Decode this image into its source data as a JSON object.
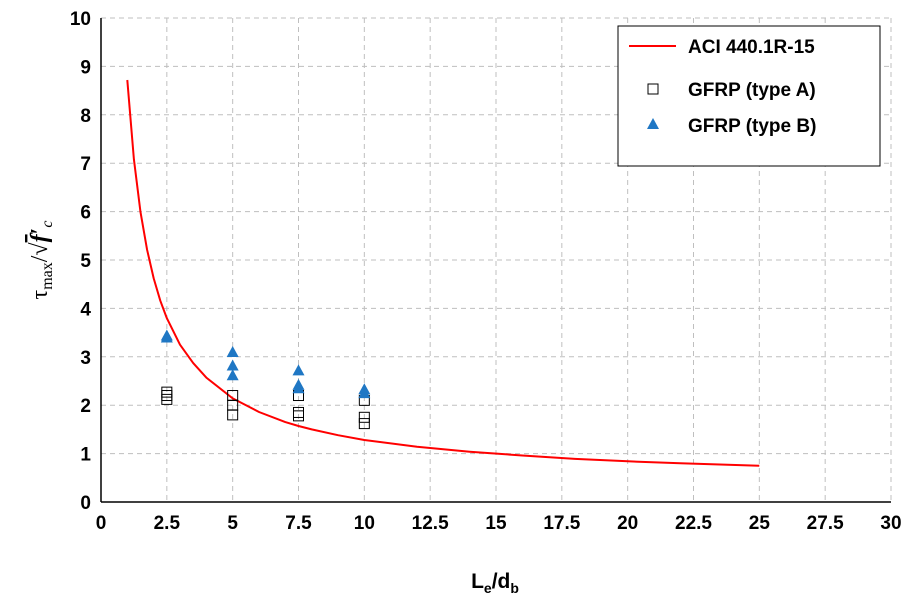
{
  "chart_data": {
    "type": "scatter",
    "xlabel": {
      "main": "L",
      "sub1": "e",
      "mid": "/d",
      "sub2": "b"
    },
    "ylabel": {
      "tau": "τ",
      "sub": "max",
      "slash": "/",
      "root": "√",
      "f": "f",
      "prime": "′",
      "csub": "c"
    },
    "xlim": [
      0,
      30
    ],
    "ylim": [
      0,
      10
    ],
    "x_ticks": [
      "0",
      "2.5",
      "5",
      "7.5",
      "10",
      "12.5",
      "15",
      "17.5",
      "20",
      "22.5",
      "25",
      "27.5",
      "30"
    ],
    "y_ticks": [
      "0",
      "1",
      "2",
      "3",
      "4",
      "5",
      "6",
      "7",
      "8",
      "9",
      "10"
    ],
    "grid": true,
    "legend_position": "top-right",
    "series": [
      {
        "name": "ACI 440.1R-15",
        "kind": "line",
        "color": "#ff0000",
        "x": [
          1,
          1.25,
          1.5,
          1.75,
          2,
          2.25,
          2.5,
          3,
          3.5,
          4,
          5,
          6,
          7,
          7.5,
          8,
          9,
          10,
          12,
          14,
          16,
          18,
          20,
          22,
          25
        ],
        "y": [
          8.72,
          7.08,
          5.99,
          5.21,
          4.62,
          4.16,
          3.8,
          3.25,
          2.87,
          2.57,
          2.14,
          1.86,
          1.65,
          1.57,
          1.5,
          1.38,
          1.28,
          1.14,
          1.04,
          0.96,
          0.89,
          0.84,
          0.8,
          0.75
        ]
      },
      {
        "name": "GFRP (type A)",
        "kind": "markers",
        "marker": "square-open",
        "color": "#000000",
        "x": [
          2.5,
          2.5,
          2.5,
          5,
          5,
          5,
          7.5,
          7.5,
          7.5,
          10,
          10,
          10
        ],
        "y": [
          2.12,
          2.2,
          2.27,
          1.8,
          2.0,
          2.2,
          1.78,
          1.85,
          2.2,
          1.62,
          1.75,
          2.1
        ]
      },
      {
        "name": "GFRP (type B)",
        "kind": "markers",
        "marker": "triangle",
        "color": "#1f77c4",
        "x": [
          2.5,
          2.5,
          5,
          5,
          5,
          7.5,
          7.5,
          7.5,
          10,
          10
        ],
        "y": [
          3.4,
          3.44,
          2.62,
          2.82,
          3.1,
          2.35,
          2.42,
          2.72,
          2.25,
          2.33
        ]
      }
    ]
  }
}
